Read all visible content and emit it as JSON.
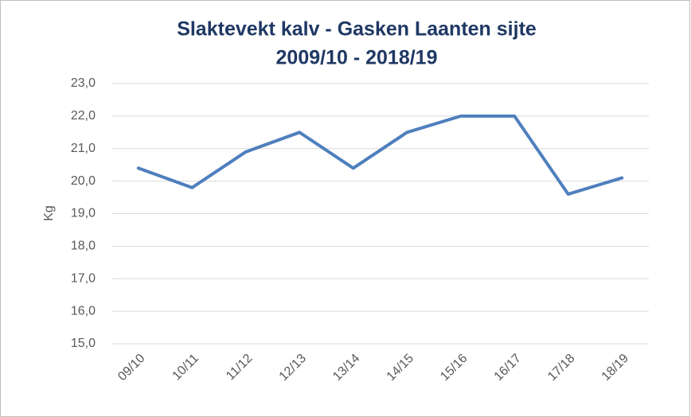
{
  "chart_data": {
    "type": "line",
    "title": [
      "Slaktevekt kalv - Gasken Laanten sijte",
      "2009/10 - 2018/19"
    ],
    "y_label": "Kg",
    "categories": [
      "09/10",
      "10/11",
      "11/12",
      "12/13",
      "13/14",
      "14/15",
      "15/16",
      "16/17",
      "17/18",
      "18/19"
    ],
    "series": [
      {
        "name": "Slaktevekt kalv",
        "color": "#4f7fbd",
        "values": [
          20.4,
          19.8,
          20.9,
          21.5,
          20.4,
          21.5,
          22.0,
          22.0,
          19.6,
          20.1
        ]
      }
    ],
    "ylim": [
      15,
      23
    ],
    "yticks": [
      {
        "value": 15,
        "label": "15,0"
      },
      {
        "value": 16,
        "label": "16,0"
      },
      {
        "value": 17,
        "label": "17,0"
      },
      {
        "value": 18,
        "label": "18,0"
      },
      {
        "value": 19,
        "label": "19,0"
      },
      {
        "value": 20,
        "label": "20,0"
      },
      {
        "value": 21,
        "label": "21,0"
      },
      {
        "value": 22,
        "label": "22,0"
      },
      {
        "value": 23,
        "label": "23,0"
      }
    ],
    "grid": true
  }
}
